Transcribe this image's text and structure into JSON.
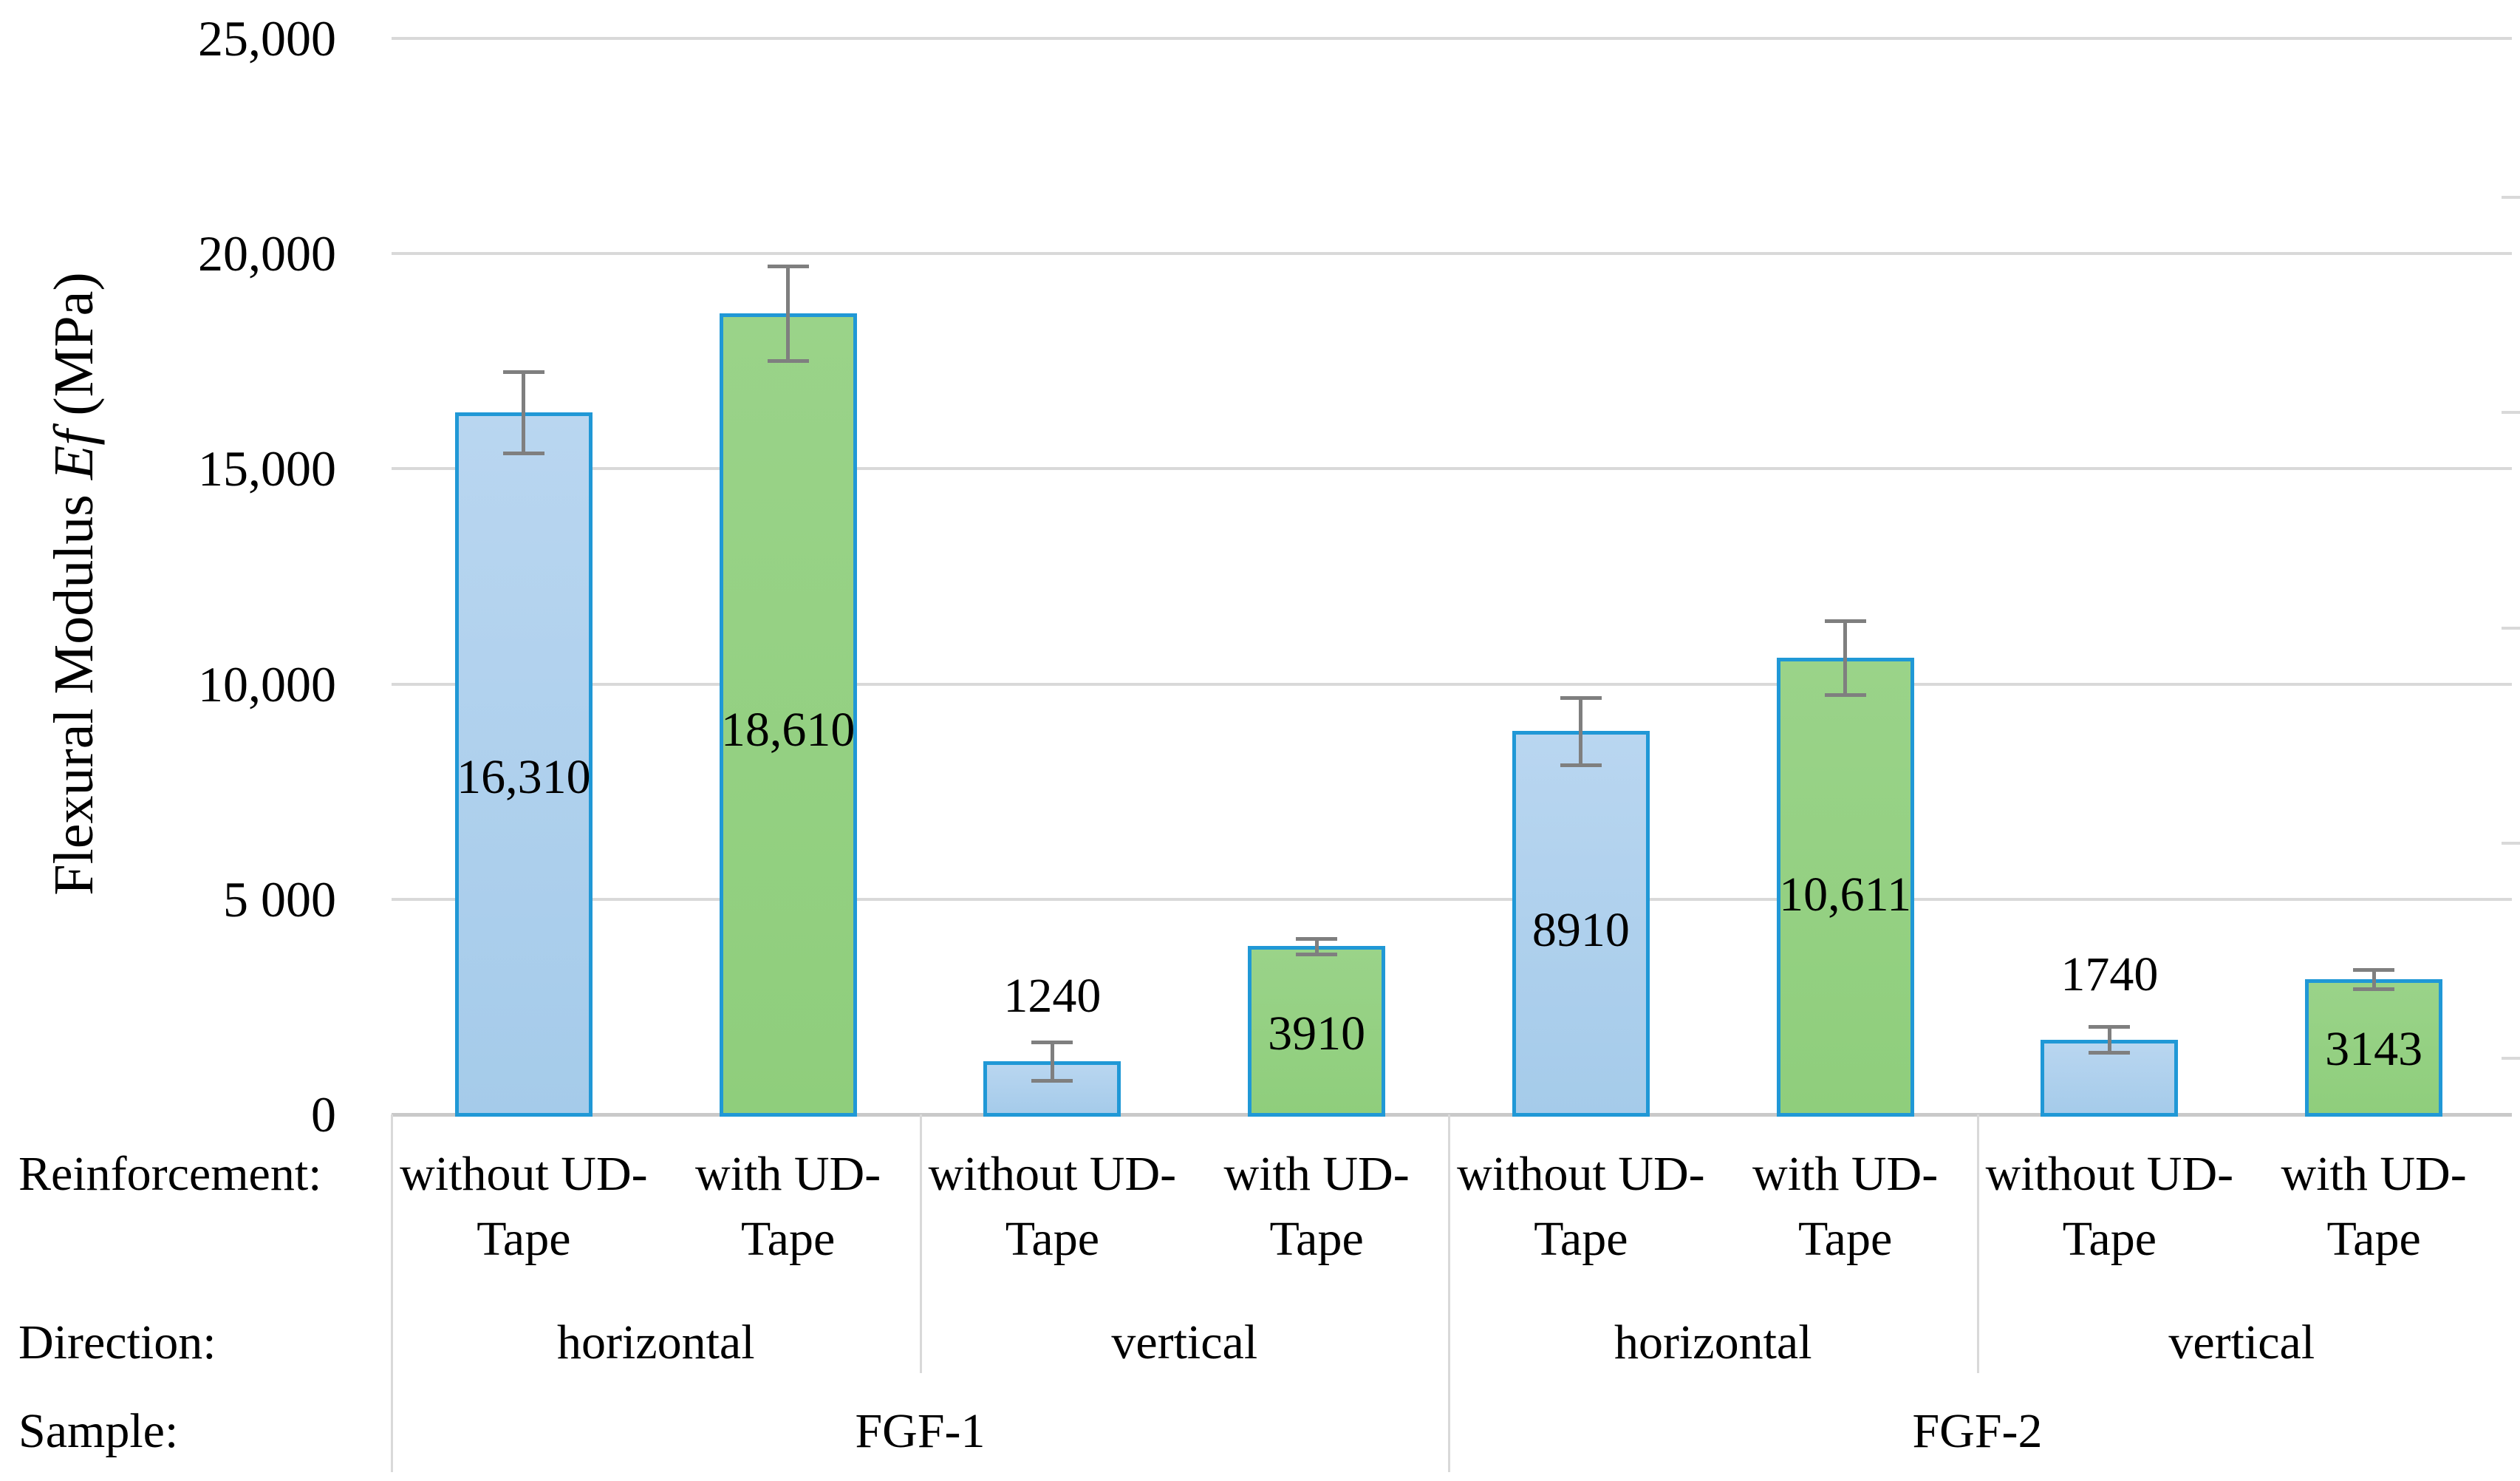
{
  "chart_data": {
    "type": "bar",
    "title": "",
    "ylabel": "Flexural Modulus Ef (MPa)",
    "ylabel_parts": {
      "prefix": "Flexural Modulus",
      "italic": "Ef",
      "suffix": " (MPa)"
    },
    "ylim": [
      0,
      25000
    ],
    "grid": true,
    "legend": "none",
    "yticks": [
      {
        "value": 0,
        "label": "0"
      },
      {
        "value": 5000,
        "label": "5 000"
      },
      {
        "value": 10000,
        "label": "10,000"
      },
      {
        "value": 15000,
        "label": "15,000"
      },
      {
        "value": 20000,
        "label": "20,000"
      },
      {
        "value": 25000,
        "label": "25,000"
      }
    ],
    "series_styles": [
      {
        "name": "without UD-Tape",
        "fill": "#A5CBEA",
        "fill_top": "#B9D6F0",
        "border": "#2098D6"
      },
      {
        "name": "with UD-Tape",
        "fill": "#8FCE7C",
        "fill_top": "#9AD389",
        "border": "#2098D6"
      }
    ],
    "error_bar_color": "#7F7F7F",
    "bars": [
      {
        "sample": "FGF-1",
        "direction": "horizontal",
        "reinforcement": "without UD-Tape",
        "value": 16310,
        "label": "16,310",
        "label_placement": "inside",
        "error_mpa_estimate": 950,
        "series": 0
      },
      {
        "sample": "FGF-1",
        "direction": "horizontal",
        "reinforcement": "with UD-Tape",
        "value": 18610,
        "label": "18,610",
        "label_placement": "inside",
        "error_mpa_estimate": 1100,
        "series": 1
      },
      {
        "sample": "FGF-1",
        "direction": "vertical",
        "reinforcement": "without UD-Tape",
        "value": 1240,
        "label": "1240",
        "label_placement": "above",
        "error_mpa_estimate": 450,
        "series": 0
      },
      {
        "sample": "FGF-1",
        "direction": "vertical",
        "reinforcement": "with UD-Tape",
        "value": 3910,
        "label": "3910",
        "label_placement": "inside",
        "error_mpa_estimate": 180,
        "series": 1
      },
      {
        "sample": "FGF-2",
        "direction": "horizontal",
        "reinforcement": "without UD-Tape",
        "value": 8910,
        "label": "8910",
        "label_placement": "inside",
        "error_mpa_estimate": 780,
        "series": 0
      },
      {
        "sample": "FGF-2",
        "direction": "horizontal",
        "reinforcement": "with UD-Tape",
        "value": 10611,
        "label": "10,611",
        "label_placement": "inside",
        "error_mpa_estimate": 860,
        "series": 1
      },
      {
        "sample": "FGF-2",
        "direction": "vertical",
        "reinforcement": "without UD-Tape",
        "value": 1740,
        "label": "1740",
        "label_placement": "above",
        "error_mpa_estimate": 300,
        "series": 0
      },
      {
        "sample": "FGF-2",
        "direction": "vertical",
        "reinforcement": "with UD-Tape",
        "value": 3143,
        "label": "3143",
        "label_placement": "inside",
        "error_mpa_estimate": 220,
        "series": 1
      }
    ],
    "category_axis": {
      "row_titles": [
        "Reinforcement:",
        "Direction:",
        "Sample:"
      ],
      "reinforcement_label_lines": {
        "without UD-Tape": [
          "without UD-",
          "Tape"
        ],
        "with UD-Tape": [
          "with UD-",
          "Tape"
        ]
      },
      "direction_groups": [
        {
          "label": "horizontal",
          "span": 2
        },
        {
          "label": "vertical",
          "span": 2
        },
        {
          "label": "horizontal",
          "span": 2
        },
        {
          "label": "vertical",
          "span": 2
        }
      ],
      "sample_groups": [
        {
          "label": "FGF-1",
          "span": 4
        },
        {
          "label": "FGF-2",
          "span": 4
        }
      ]
    },
    "colors": {
      "gridline": "#D9D9D9",
      "axis_line": "#C9C9C9",
      "divider": "#D9D9D9",
      "text": "#000000",
      "error_bar": "#7F7F7F"
    }
  }
}
